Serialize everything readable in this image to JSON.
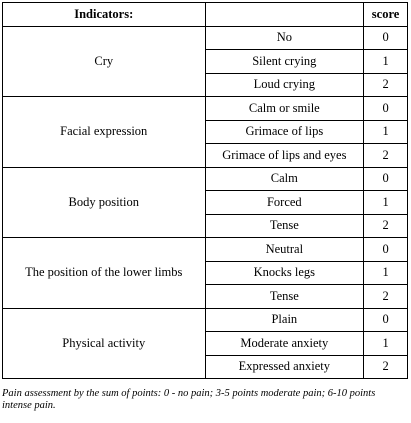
{
  "table": {
    "headers": {
      "indicator": "Indicators:",
      "description": "",
      "score": "score"
    },
    "groups": [
      {
        "indicator": "Cry",
        "rows": [
          {
            "description": "No",
            "score": "0"
          },
          {
            "description": "Silent crying",
            "score": "1"
          },
          {
            "description": "Loud crying",
            "score": "2"
          }
        ]
      },
      {
        "indicator": "Facial expression",
        "rows": [
          {
            "description": "Calm or smile",
            "score": "0"
          },
          {
            "description": "Grimace of lips",
            "score": "1"
          },
          {
            "description": "Grimace of lips and eyes",
            "score": "2"
          }
        ]
      },
      {
        "indicator": "Body position",
        "rows": [
          {
            "description": "Calm",
            "score": "0"
          },
          {
            "description": "Forced",
            "score": "1"
          },
          {
            "description": "Tense",
            "score": "2"
          }
        ]
      },
      {
        "indicator": "The position of the lower limbs",
        "rows": [
          {
            "description": "Neutral",
            "score": "0"
          },
          {
            "description": "Knocks legs",
            "score": "1"
          },
          {
            "description": "Tense",
            "score": "2"
          }
        ]
      },
      {
        "indicator": "Physical activity",
        "rows": [
          {
            "description": "Plain",
            "score": "0"
          },
          {
            "description": "Moderate anxiety",
            "score": "1"
          },
          {
            "description": "Expressed anxiety",
            "score": "2"
          }
        ]
      }
    ]
  },
  "footnote": "Pain assessment by the sum of points: 0 - no pain; 3-5 points moderate pain; 6-10 points intense pain."
}
